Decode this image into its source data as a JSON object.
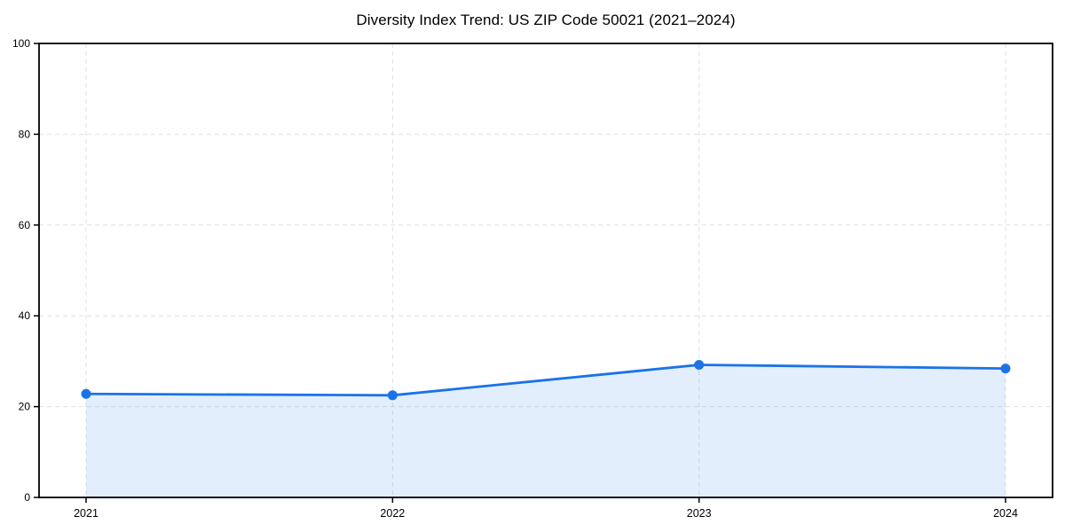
{
  "chart_data": {
    "type": "line",
    "title": "Diversity Index Trend: US ZIP Code 50021 (2021–2024)",
    "categories": [
      "2021",
      "2022",
      "2023",
      "2024"
    ],
    "series": [
      {
        "name": "Diversity Index",
        "values": [
          22.8,
          22.5,
          29.2,
          28.4
        ]
      }
    ],
    "xlabel": "",
    "ylabel": "",
    "ylim": [
      0,
      100
    ],
    "yticks": [
      0,
      20,
      40,
      60,
      80,
      100
    ],
    "grid": true,
    "grid_style": "dashed",
    "legend": "none",
    "area_fill": true,
    "marker": "circle",
    "fill_opacity": 0.12,
    "colors": {
      "line": "#1a73e8",
      "marker": "#1a73e8",
      "fill": "#1a73e8",
      "grid": "#e0e0e0",
      "spine": "#000000",
      "text": "#000000",
      "background": "#ffffff"
    }
  }
}
